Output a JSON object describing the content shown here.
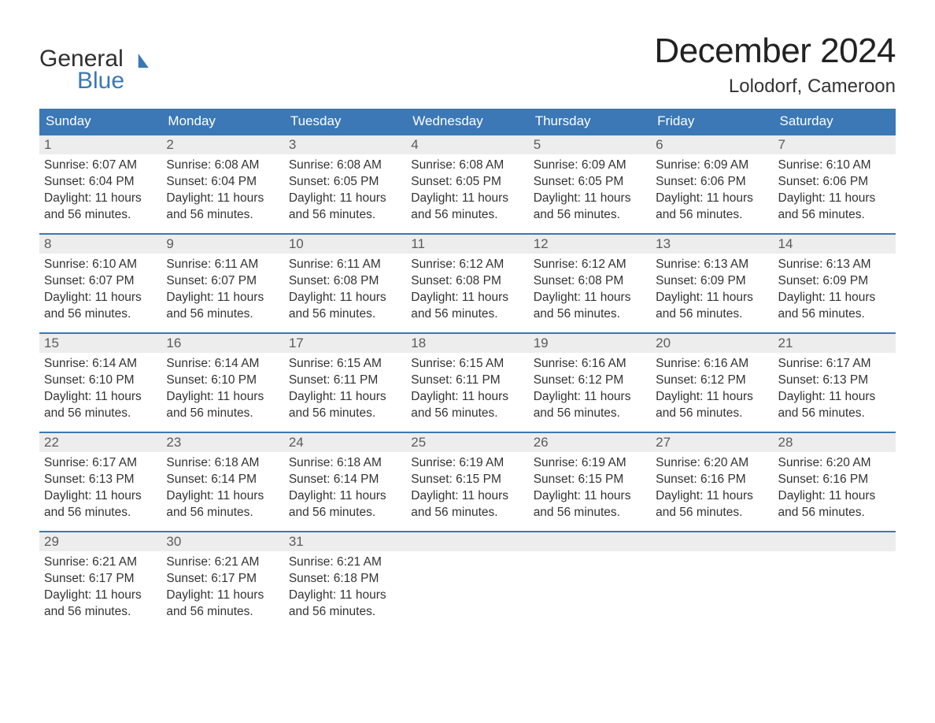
{
  "brand": {
    "word1": "General",
    "word2": "Blue"
  },
  "header": {
    "month_title": "December 2024",
    "location": "Lolodorf, Cameroon"
  },
  "colors": {
    "header_bg": "#3b78b5",
    "header_text": "#ffffff",
    "daynum_bg": "#ededed",
    "daynum_border": "#3b78b5",
    "body_text": "#333333",
    "page_bg": "#ffffff"
  },
  "day_headers": [
    "Sunday",
    "Monday",
    "Tuesday",
    "Wednesday",
    "Thursday",
    "Friday",
    "Saturday"
  ],
  "weeks": [
    [
      {
        "num": "1",
        "sunrise": "Sunrise: 6:07 AM",
        "sunset": "Sunset: 6:04 PM",
        "day1": "Daylight: 11 hours",
        "day2": "and 56 minutes."
      },
      {
        "num": "2",
        "sunrise": "Sunrise: 6:08 AM",
        "sunset": "Sunset: 6:04 PM",
        "day1": "Daylight: 11 hours",
        "day2": "and 56 minutes."
      },
      {
        "num": "3",
        "sunrise": "Sunrise: 6:08 AM",
        "sunset": "Sunset: 6:05 PM",
        "day1": "Daylight: 11 hours",
        "day2": "and 56 minutes."
      },
      {
        "num": "4",
        "sunrise": "Sunrise: 6:08 AM",
        "sunset": "Sunset: 6:05 PM",
        "day1": "Daylight: 11 hours",
        "day2": "and 56 minutes."
      },
      {
        "num": "5",
        "sunrise": "Sunrise: 6:09 AM",
        "sunset": "Sunset: 6:05 PM",
        "day1": "Daylight: 11 hours",
        "day2": "and 56 minutes."
      },
      {
        "num": "6",
        "sunrise": "Sunrise: 6:09 AM",
        "sunset": "Sunset: 6:06 PM",
        "day1": "Daylight: 11 hours",
        "day2": "and 56 minutes."
      },
      {
        "num": "7",
        "sunrise": "Sunrise: 6:10 AM",
        "sunset": "Sunset: 6:06 PM",
        "day1": "Daylight: 11 hours",
        "day2": "and 56 minutes."
      }
    ],
    [
      {
        "num": "8",
        "sunrise": "Sunrise: 6:10 AM",
        "sunset": "Sunset: 6:07 PM",
        "day1": "Daylight: 11 hours",
        "day2": "and 56 minutes."
      },
      {
        "num": "9",
        "sunrise": "Sunrise: 6:11 AM",
        "sunset": "Sunset: 6:07 PM",
        "day1": "Daylight: 11 hours",
        "day2": "and 56 minutes."
      },
      {
        "num": "10",
        "sunrise": "Sunrise: 6:11 AM",
        "sunset": "Sunset: 6:08 PM",
        "day1": "Daylight: 11 hours",
        "day2": "and 56 minutes."
      },
      {
        "num": "11",
        "sunrise": "Sunrise: 6:12 AM",
        "sunset": "Sunset: 6:08 PM",
        "day1": "Daylight: 11 hours",
        "day2": "and 56 minutes."
      },
      {
        "num": "12",
        "sunrise": "Sunrise: 6:12 AM",
        "sunset": "Sunset: 6:08 PM",
        "day1": "Daylight: 11 hours",
        "day2": "and 56 minutes."
      },
      {
        "num": "13",
        "sunrise": "Sunrise: 6:13 AM",
        "sunset": "Sunset: 6:09 PM",
        "day1": "Daylight: 11 hours",
        "day2": "and 56 minutes."
      },
      {
        "num": "14",
        "sunrise": "Sunrise: 6:13 AM",
        "sunset": "Sunset: 6:09 PM",
        "day1": "Daylight: 11 hours",
        "day2": "and 56 minutes."
      }
    ],
    [
      {
        "num": "15",
        "sunrise": "Sunrise: 6:14 AM",
        "sunset": "Sunset: 6:10 PM",
        "day1": "Daylight: 11 hours",
        "day2": "and 56 minutes."
      },
      {
        "num": "16",
        "sunrise": "Sunrise: 6:14 AM",
        "sunset": "Sunset: 6:10 PM",
        "day1": "Daylight: 11 hours",
        "day2": "and 56 minutes."
      },
      {
        "num": "17",
        "sunrise": "Sunrise: 6:15 AM",
        "sunset": "Sunset: 6:11 PM",
        "day1": "Daylight: 11 hours",
        "day2": "and 56 minutes."
      },
      {
        "num": "18",
        "sunrise": "Sunrise: 6:15 AM",
        "sunset": "Sunset: 6:11 PM",
        "day1": "Daylight: 11 hours",
        "day2": "and 56 minutes."
      },
      {
        "num": "19",
        "sunrise": "Sunrise: 6:16 AM",
        "sunset": "Sunset: 6:12 PM",
        "day1": "Daylight: 11 hours",
        "day2": "and 56 minutes."
      },
      {
        "num": "20",
        "sunrise": "Sunrise: 6:16 AM",
        "sunset": "Sunset: 6:12 PM",
        "day1": "Daylight: 11 hours",
        "day2": "and 56 minutes."
      },
      {
        "num": "21",
        "sunrise": "Sunrise: 6:17 AM",
        "sunset": "Sunset: 6:13 PM",
        "day1": "Daylight: 11 hours",
        "day2": "and 56 minutes."
      }
    ],
    [
      {
        "num": "22",
        "sunrise": "Sunrise: 6:17 AM",
        "sunset": "Sunset: 6:13 PM",
        "day1": "Daylight: 11 hours",
        "day2": "and 56 minutes."
      },
      {
        "num": "23",
        "sunrise": "Sunrise: 6:18 AM",
        "sunset": "Sunset: 6:14 PM",
        "day1": "Daylight: 11 hours",
        "day2": "and 56 minutes."
      },
      {
        "num": "24",
        "sunrise": "Sunrise: 6:18 AM",
        "sunset": "Sunset: 6:14 PM",
        "day1": "Daylight: 11 hours",
        "day2": "and 56 minutes."
      },
      {
        "num": "25",
        "sunrise": "Sunrise: 6:19 AM",
        "sunset": "Sunset: 6:15 PM",
        "day1": "Daylight: 11 hours",
        "day2": "and 56 minutes."
      },
      {
        "num": "26",
        "sunrise": "Sunrise: 6:19 AM",
        "sunset": "Sunset: 6:15 PM",
        "day1": "Daylight: 11 hours",
        "day2": "and 56 minutes."
      },
      {
        "num": "27",
        "sunrise": "Sunrise: 6:20 AM",
        "sunset": "Sunset: 6:16 PM",
        "day1": "Daylight: 11 hours",
        "day2": "and 56 minutes."
      },
      {
        "num": "28",
        "sunrise": "Sunrise: 6:20 AM",
        "sunset": "Sunset: 6:16 PM",
        "day1": "Daylight: 11 hours",
        "day2": "and 56 minutes."
      }
    ],
    [
      {
        "num": "29",
        "sunrise": "Sunrise: 6:21 AM",
        "sunset": "Sunset: 6:17 PM",
        "day1": "Daylight: 11 hours",
        "day2": "and 56 minutes."
      },
      {
        "num": "30",
        "sunrise": "Sunrise: 6:21 AM",
        "sunset": "Sunset: 6:17 PM",
        "day1": "Daylight: 11 hours",
        "day2": "and 56 minutes."
      },
      {
        "num": "31",
        "sunrise": "Sunrise: 6:21 AM",
        "sunset": "Sunset: 6:18 PM",
        "day1": "Daylight: 11 hours",
        "day2": "and 56 minutes."
      },
      {
        "empty": true
      },
      {
        "empty": true
      },
      {
        "empty": true
      },
      {
        "empty": true
      }
    ]
  ]
}
